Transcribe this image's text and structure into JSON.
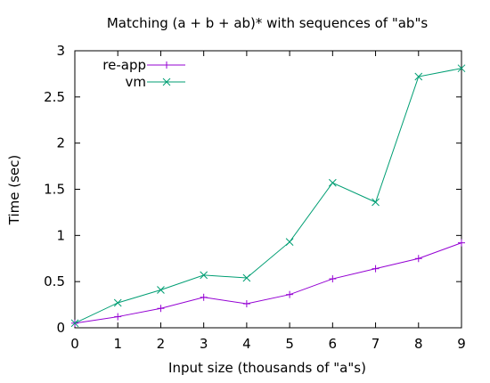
{
  "chart_data": {
    "type": "line",
    "title": "Matching (a + b + ab)* with sequences of \"ab\"s",
    "xlabel": "Input size (thousands of \"a\"s)",
    "ylabel": "Time (sec)",
    "xlim": [
      0,
      9
    ],
    "ylim": [
      0,
      3
    ],
    "x_ticks": [
      "0",
      "1",
      "2",
      "3",
      "4",
      "5",
      "6",
      "7",
      "8",
      "9"
    ],
    "y_ticks": [
      "0",
      "0.5",
      "1",
      "1.5",
      "2",
      "2.5",
      "3"
    ],
    "grid": false,
    "legend_position": "top-left",
    "x": [
      0,
      1,
      2,
      3,
      4,
      5,
      6,
      7,
      8,
      9
    ],
    "series": [
      {
        "name": "re-app",
        "color": "#9400d3",
        "marker": "plus",
        "values": [
          0.05,
          0.12,
          0.21,
          0.33,
          0.26,
          0.36,
          0.53,
          0.64,
          0.75,
          0.92
        ]
      },
      {
        "name": "vm",
        "color": "#009e73",
        "marker": "cross",
        "values": [
          0.05,
          0.27,
          0.41,
          0.57,
          0.54,
          0.93,
          1.57,
          1.36,
          2.72,
          2.81
        ]
      }
    ]
  }
}
